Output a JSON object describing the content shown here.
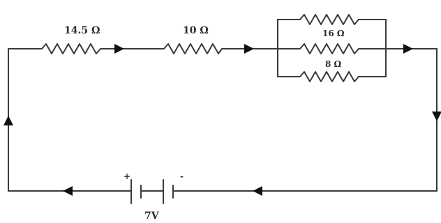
{
  "resistors": {
    "r1": "14.5 Ω",
    "r2": "10 Ω",
    "parallel_top": "",
    "parallel_mid": "16 Ω",
    "parallel_bottom": "8 Ω"
  },
  "battery": {
    "voltage": "7V",
    "plus": "+",
    "minus": "-"
  },
  "colors": {
    "wire": "#3a3a3a",
    "arrow": "#111111"
  }
}
